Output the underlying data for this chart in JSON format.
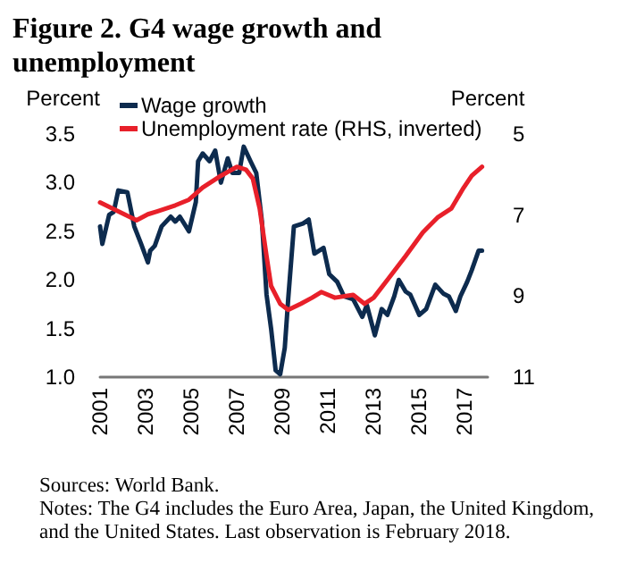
{
  "chart_data": {
    "type": "line",
    "title": "Figure 2. G4 wage growth and unemployment",
    "ylabel": "Percent",
    "y2label": "Percent",
    "xlim": [
      2001,
      2018
    ],
    "xticks": [
      2001,
      2003,
      2005,
      2007,
      2009,
      2011,
      2013,
      2015,
      2017
    ],
    "ylim": [
      1.0,
      3.5
    ],
    "yticks": [
      {
        "value": 1.0,
        "label": "1.0"
      },
      {
        "value": 1.5,
        "label": "1.5"
      },
      {
        "value": 2.0,
        "label": "2.0"
      },
      {
        "value": 2.5,
        "label": "2.5"
      },
      {
        "value": 3.0,
        "label": "3.0"
      },
      {
        "value": 3.5,
        "label": "3.5"
      }
    ],
    "y2lim": [
      11,
      5
    ],
    "y2ticks": [
      5,
      7,
      9,
      11
    ],
    "grid": false,
    "legend": "top left",
    "marker": "none",
    "line_style": "solid",
    "series": [
      {
        "name": "Wage growth",
        "color": "#0d2b4e",
        "x": [
          2001.0,
          2001.1,
          2001.4,
          2001.6,
          2001.8,
          2002.2,
          2002.5,
          2002.8,
          2003.1,
          2003.2,
          2003.4,
          2003.7,
          2004.1,
          2004.3,
          2004.5,
          2004.9,
          2005.2,
          2005.3,
          2005.5,
          2005.8,
          2006.05,
          2006.3,
          2006.6,
          2006.8,
          2007.1,
          2007.3,
          2007.6,
          2007.85,
          2008.1,
          2008.3,
          2008.5,
          2008.7,
          2008.9,
          2009.1,
          2009.25,
          2009.5,
          2009.9,
          2010.15,
          2010.4,
          2010.8,
          2011.05,
          2011.4,
          2011.7,
          2012.1,
          2012.5,
          2012.7,
          2013.05,
          2013.35,
          2013.6,
          2013.9,
          2014.1,
          2014.4,
          2014.6,
          2015.0,
          2015.3,
          2015.7,
          2016.05,
          2016.3,
          2016.6,
          2016.8,
          2017.1,
          2017.3,
          2017.6,
          2017.75
        ],
        "values": [
          2.55,
          2.37,
          2.67,
          2.7,
          2.92,
          2.9,
          2.55,
          2.37,
          2.18,
          2.3,
          2.35,
          2.55,
          2.65,
          2.6,
          2.65,
          2.5,
          2.8,
          3.22,
          3.3,
          3.22,
          3.33,
          3.0,
          3.25,
          3.1,
          3.1,
          3.37,
          3.22,
          3.1,
          2.6,
          1.85,
          1.5,
          1.07,
          1.03,
          1.3,
          1.8,
          2.55,
          2.58,
          2.62,
          2.27,
          2.33,
          2.06,
          1.98,
          1.83,
          1.8,
          1.62,
          1.74,
          1.43,
          1.7,
          1.64,
          1.83,
          2.0,
          1.88,
          1.85,
          1.64,
          1.7,
          1.95,
          1.86,
          1.83,
          1.68,
          1.83,
          1.98,
          2.1,
          2.3,
          2.3
        ]
      },
      {
        "name": "Unemployment rate (RHS, inverted)",
        "color": "#e8202a",
        "axis": "y2",
        "x": [
          2001.0,
          2001.8,
          2002.6,
          2003.1,
          2003.5,
          2004.3,
          2004.9,
          2005.5,
          2006.3,
          2007.0,
          2007.4,
          2007.7,
          2008.0,
          2008.3,
          2008.5,
          2008.9,
          2009.25,
          2009.8,
          2010.3,
          2010.7,
          2011.3,
          2012.1,
          2012.6,
          2013.0,
          2013.6,
          2014.4,
          2015.15,
          2015.8,
          2016.4,
          2016.95,
          2017.3,
          2017.75
        ],
        "values": [
          6.69,
          6.91,
          7.13,
          6.98,
          6.91,
          6.76,
          6.62,
          6.32,
          6.03,
          5.81,
          5.88,
          6.1,
          6.84,
          8.01,
          8.75,
          9.19,
          9.34,
          9.19,
          9.04,
          8.9,
          9.04,
          8.97,
          9.19,
          9.04,
          8.6,
          8.01,
          7.43,
          7.06,
          6.84,
          6.32,
          6.03,
          5.81
        ]
      }
    ],
    "annotations": [
      "Sources: World Bank.",
      "Notes: The G4 includes the Euro Area, Japan, the United Kingdom, and the United States. Last observation is February 2018."
    ]
  }
}
